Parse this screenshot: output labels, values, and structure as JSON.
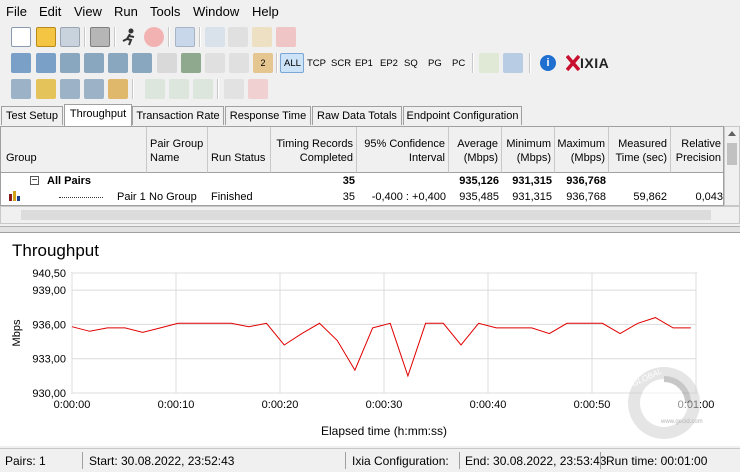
{
  "menu": [
    "File",
    "Edit",
    "View",
    "Run",
    "Tools",
    "Window",
    "Help"
  ],
  "toolbar": {
    "protocol_buttons": [
      "ALL",
      "TCP",
      "SCR",
      "EP1",
      "EP2",
      "SQ",
      "PG",
      "PC"
    ],
    "brand": "IXIA",
    "step_label": "2"
  },
  "tabs": [
    "Test Setup",
    "Throughput",
    "Transaction Rate",
    "Response Time",
    "Raw Data Totals",
    "Endpoint Configuration"
  ],
  "active_tab": "Throughput",
  "table": {
    "columns": [
      "Group",
      "Pair Group Name",
      "Run Status",
      "Timing Records Completed",
      "95% Confidence Interval",
      "Average (Mbps)",
      "Minimum (Mbps)",
      "Maximum (Mbps)",
      "Measured Time (sec)",
      "Relative Precision"
    ],
    "group_row": {
      "expander": "−",
      "label": "All Pairs",
      "records": "35",
      "average": "935,126",
      "minimum": "931,315",
      "maximum": "936,768"
    },
    "pair_row": {
      "label": "Pair 1",
      "group_name": "No Group",
      "status": "Finished",
      "records": "35",
      "confidence": "-0,400 : +0,400",
      "average": "935,485",
      "minimum": "931,315",
      "maximum": "936,768",
      "time": "59,862",
      "precision": "0,043"
    }
  },
  "chart_data": {
    "type": "line",
    "title": "Throughput",
    "xlabel": "Elapsed time (h:mm:ss)",
    "ylabel": "Mbps",
    "ylim": [
      930.0,
      940.5
    ],
    "yticks": [
      "940,50",
      "939,00",
      "936,00",
      "933,00",
      "930,00"
    ],
    "ytick_values": [
      940.5,
      939.0,
      936.0,
      933.0,
      930.0
    ],
    "xticks": [
      "0:00:00",
      "0:00:10",
      "0:00:20",
      "0:00:30",
      "0:00:40",
      "0:00:50",
      "0:01:00"
    ],
    "xlim": [
      0,
      60
    ],
    "grid": true,
    "line_color": "#e00000",
    "series": [
      {
        "x": [
          0,
          1.7,
          3.4,
          5.1,
          6.8,
          8.5,
          10.2,
          11.9,
          13.6,
          15.3,
          17.0,
          18.7,
          20.4,
          22.1,
          23.8,
          25.5,
          27.2,
          28.9,
          30.6,
          32.3,
          34.0,
          35.7,
          37.4,
          39.1,
          40.8,
          42.5,
          44.2,
          45.9,
          47.6,
          49.3,
          51.0,
          52.7,
          54.4,
          56.1,
          57.8,
          59.5
        ],
        "y": [
          935.8,
          935.4,
          935.7,
          935.7,
          935.3,
          935.7,
          936.1,
          936.1,
          936.1,
          936.1,
          935.8,
          936.1,
          934.2,
          935.2,
          936.1,
          934.6,
          932.0,
          935.7,
          936.1,
          931.5,
          936.1,
          936.1,
          934.2,
          936.1,
          935.7,
          935.7,
          935.7,
          935.2,
          936.1,
          936.1,
          936.1,
          935.2,
          936.1,
          936.6,
          935.7,
          935.7
        ]
      }
    ]
  },
  "watermark": {
    "text": "GLOBAL",
    "url": "www.gecid.com"
  },
  "status": {
    "pairs": "Pairs: 1",
    "start": "Start: 30.08.2022, 23:52:43",
    "ixia_config": "Ixia Configuration:",
    "end": "End: 30.08.2022, 23:53:43",
    "runtime": "Run time: 00:01:00"
  },
  "colors": {
    "accent_red": "#e00000",
    "brand_red": "#c8102e",
    "grid": "#dcdcdc"
  }
}
